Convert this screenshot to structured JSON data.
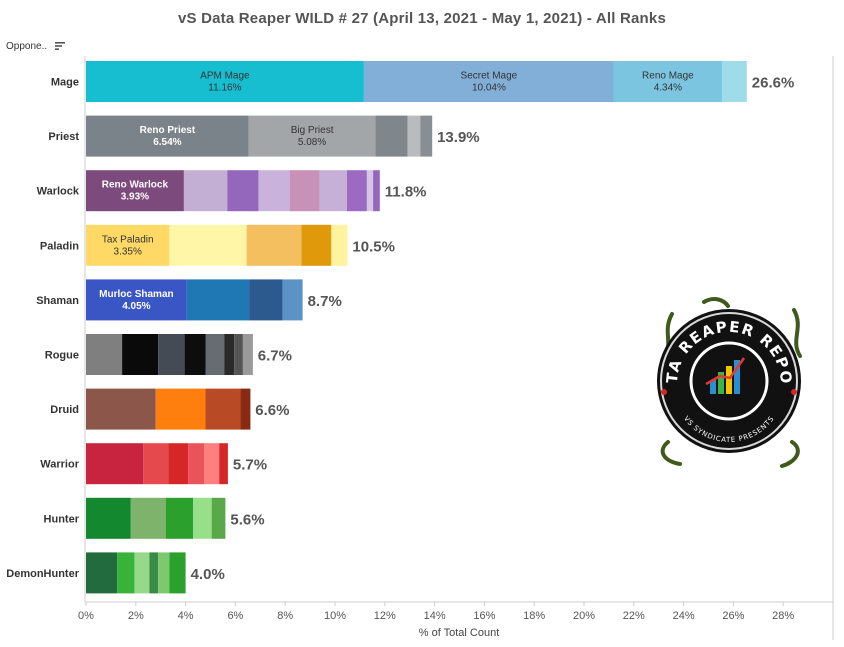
{
  "title": "vS Data Reaper WILD # 27 (April 13, 2021 - May 1, 2021) - All Ranks",
  "header_label": "Oppone..",
  "logo": {
    "text": "DATA REAPER REPORT",
    "subtext": "VS SYNDICATE PRESENTS"
  },
  "chart_data": {
    "type": "bar",
    "orientation": "horizontal",
    "stacked": true,
    "title": "vS Data Reaper WILD # 27 (April 13, 2021 - May 1, 2021) - All Ranks",
    "xlabel": "% of Total Count",
    "ylabel": "",
    "xlim": [
      0,
      28
    ],
    "xticks": [
      "0%",
      "2%",
      "4%",
      "6%",
      "8%",
      "10%",
      "12%",
      "14%",
      "16%",
      "18%",
      "20%",
      "22%",
      "24%",
      "26%",
      "28%"
    ],
    "grid": false,
    "categories": [
      "Mage",
      "Priest",
      "Warlock",
      "Paladin",
      "Shaman",
      "Rogue",
      "Druid",
      "Warrior",
      "Hunter",
      "DemonHunter"
    ],
    "totals": [
      "26.6%",
      "13.9%",
      "11.8%",
      "10.5%",
      "8.7%",
      "6.7%",
      "6.6%",
      "5.7%",
      "5.6%",
      "4.0%"
    ],
    "bars": [
      {
        "class": "Mage",
        "segments": [
          {
            "name": "APM Mage",
            "label": "11.16%",
            "value": 11.16,
            "color": "#17becf",
            "text_color": "#333333"
          },
          {
            "name": "Secret Mage",
            "label": "10.04%",
            "value": 10.04,
            "color": "#82afd8",
            "text_color": "#333333"
          },
          {
            "name": "Reno Mage",
            "label": "4.34%",
            "value": 4.34,
            "color": "#7cc5e1",
            "text_color": "#333333"
          },
          {
            "value": 1.0,
            "color": "#9fdbe8"
          }
        ]
      },
      {
        "class": "Priest",
        "segments": [
          {
            "name": "Reno Priest",
            "label": "6.54%",
            "value": 6.54,
            "color": "#7a8389",
            "text_color": "#ffffff",
            "bold": true
          },
          {
            "name": "Big Priest",
            "label": "5.08%",
            "value": 5.08,
            "color": "#a2a6a8",
            "text_color": "#333333"
          },
          {
            "value": 1.3,
            "color": "#7f878c"
          },
          {
            "value": 0.5,
            "color": "#b8bcbe"
          },
          {
            "value": 0.48,
            "color": "#888f94"
          }
        ]
      },
      {
        "class": "Warlock",
        "segments": [
          {
            "name": "Reno Warlock",
            "label": "3.93%",
            "value": 3.93,
            "color": "#7d4a7d",
            "text_color": "#ffffff",
            "bold": true
          },
          {
            "value": 1.75,
            "color": "#c4afd4"
          },
          {
            "value": 1.25,
            "color": "#9467bd"
          },
          {
            "value": 1.25,
            "color": "#c9b2dc"
          },
          {
            "value": 1.2,
            "color": "#c891b8"
          },
          {
            "value": 1.1,
            "color": "#c6b0d8"
          },
          {
            "value": 0.8,
            "color": "#9b6bc4"
          },
          {
            "value": 0.25,
            "color": "#d6c6e6"
          },
          {
            "value": 0.27,
            "color": "#9467bd"
          }
        ]
      },
      {
        "class": "Paladin",
        "segments": [
          {
            "name": "Tax Paladin",
            "label": "3.35%",
            "value": 3.35,
            "color": "#ffd966",
            "text_color": "#333333"
          },
          {
            "value": 3.1,
            "color": "#fff6a8"
          },
          {
            "value": 2.2,
            "color": "#f4bf5f"
          },
          {
            "value": 1.2,
            "color": "#e0990a"
          },
          {
            "value": 0.65,
            "color": "#fff3a0"
          }
        ]
      },
      {
        "class": "Shaman",
        "segments": [
          {
            "name": "Murloc Shaman",
            "label": "4.05%",
            "value": 4.05,
            "color": "#3a55c4",
            "text_color": "#ffffff",
            "bold": true
          },
          {
            "value": 2.5,
            "color": "#1f77b4"
          },
          {
            "value": 1.35,
            "color": "#2c5a8e"
          },
          {
            "value": 0.8,
            "color": "#5b93c6"
          }
        ]
      },
      {
        "class": "Rogue",
        "segments": [
          {
            "value": 1.45,
            "color": "#7f7f7f"
          },
          {
            "value": 1.45,
            "color": "#0a0a0a"
          },
          {
            "value": 1.05,
            "color": "#454b55"
          },
          {
            "value": 0.85,
            "color": "#0d0d0d"
          },
          {
            "value": 0.75,
            "color": "#666c72"
          },
          {
            "value": 0.4,
            "color": "#2a2a2a"
          },
          {
            "value": 0.35,
            "color": "#555555"
          },
          {
            "value": 0.4,
            "color": "#9a9a9a"
          }
        ]
      },
      {
        "class": "Druid",
        "segments": [
          {
            "value": 2.8,
            "color": "#8c564b"
          },
          {
            "value": 2.0,
            "color": "#ff7f0e"
          },
          {
            "value": 1.4,
            "color": "#b94a26"
          },
          {
            "value": 0.4,
            "color": "#8a2a10"
          }
        ]
      },
      {
        "class": "Warrior",
        "segments": [
          {
            "value": 2.3,
            "color": "#c8233f"
          },
          {
            "value": 1.0,
            "color": "#e5484d"
          },
          {
            "value": 0.8,
            "color": "#d62728"
          },
          {
            "value": 0.65,
            "color": "#e8545a"
          },
          {
            "value": 0.6,
            "color": "#ff7f7f"
          },
          {
            "value": 0.35,
            "color": "#d62728"
          }
        ]
      },
      {
        "class": "Hunter",
        "segments": [
          {
            "value": 1.8,
            "color": "#14882e"
          },
          {
            "value": 1.4,
            "color": "#7db36a"
          },
          {
            "value": 1.1,
            "color": "#2ca02c"
          },
          {
            "value": 0.75,
            "color": "#98df8a"
          },
          {
            "value": 0.55,
            "color": "#5aa84a"
          }
        ]
      },
      {
        "class": "DemonHunter",
        "segments": [
          {
            "value": 1.25,
            "color": "#226b3c"
          },
          {
            "value": 0.7,
            "color": "#37b33a"
          },
          {
            "value": 0.6,
            "color": "#98d88a"
          },
          {
            "value": 0.35,
            "color": "#3a8a4a"
          },
          {
            "value": 0.45,
            "color": "#7cc96e"
          },
          {
            "value": 0.65,
            "color": "#2ca02c"
          }
        ]
      }
    ]
  }
}
